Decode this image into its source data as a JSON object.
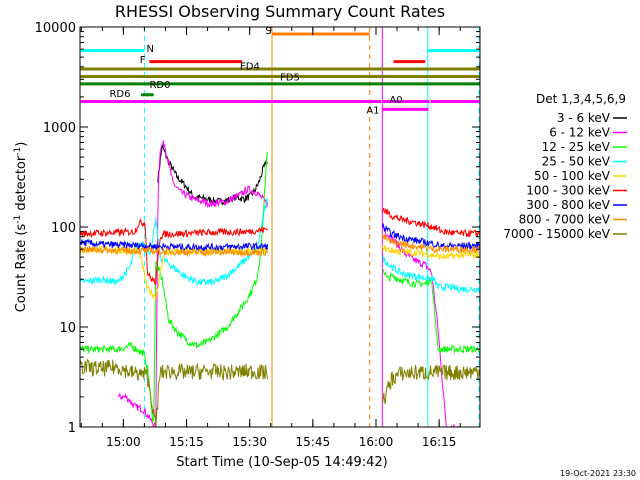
{
  "chart_data": {
    "type": "line",
    "title": "RHESSI Observing Summary Count Rates",
    "xlabel": "Start Time (10-Sep-05 14:49:42)",
    "ylabel": "Count Rate (s⁻¹ detector⁻¹)",
    "ylabel_main": "Count Rate (s",
    "ylabel_mid": " detector",
    "ylabel_end": ")",
    "ylabel_sup": "-1",
    "yscale": "log",
    "xlim_minutes": [
      0,
      95
    ],
    "ylim": [
      1,
      10000
    ],
    "x_ticks": [
      {
        "minute": 10.3,
        "label": "15:00"
      },
      {
        "minute": 25.3,
        "label": "15:15"
      },
      {
        "minute": 40.3,
        "label": "15:30"
      },
      {
        "minute": 55.3,
        "label": "15:45"
      },
      {
        "minute": 70.3,
        "label": "16:00"
      },
      {
        "minute": 85.3,
        "label": "16:15"
      }
    ],
    "y_ticks": [
      {
        "value": 1,
        "label": "1"
      },
      {
        "value": 10,
        "label": "10"
      },
      {
        "value": 100,
        "label": "100"
      },
      {
        "value": 1000,
        "label": "1000"
      },
      {
        "value": 10000,
        "label": "10000"
      }
    ],
    "legend_title": "Det 1,3,4,5,6,9",
    "legend_position": "right",
    "series": [
      {
        "name": "3 - 6 keV",
        "color": "#000000",
        "points": [
          [
            18.5,
            300
          ],
          [
            19.5,
            650
          ],
          [
            21,
            450
          ],
          [
            23,
            320
          ],
          [
            25,
            260
          ],
          [
            27,
            200
          ],
          [
            30,
            190
          ],
          [
            33,
            180
          ],
          [
            35,
            185
          ],
          [
            37,
            200
          ],
          [
            39,
            190
          ],
          [
            40.5,
            205
          ],
          [
            41.5,
            230
          ],
          [
            42.5,
            280
          ],
          [
            43.5,
            380
          ],
          [
            44.5,
            460
          ]
        ],
        "gaps": [
          [
            -1,
            18.2
          ],
          [
            44.6,
            96
          ]
        ]
      },
      {
        "name": "6 - 12 keV",
        "color": "#ff00ff",
        "points": [
          [
            9,
            2
          ],
          [
            11,
            2
          ],
          [
            13,
            1.6
          ],
          [
            15,
            1.5
          ],
          [
            18,
            1
          ],
          [
            18.5,
            190
          ],
          [
            19,
            600
          ],
          [
            20,
            700
          ],
          [
            21,
            450
          ],
          [
            22,
            280
          ],
          [
            24,
            220
          ],
          [
            27,
            190
          ],
          [
            31,
            170
          ],
          [
            35,
            180
          ],
          [
            38,
            210
          ],
          [
            40,
            240
          ],
          [
            42,
            220
          ],
          [
            44.5,
            170
          ],
          [
            72,
            100
          ],
          [
            73,
            85
          ],
          [
            75,
            70
          ],
          [
            77,
            55
          ],
          [
            80,
            45
          ],
          [
            82,
            42
          ],
          [
            83.5,
            35
          ],
          [
            85,
            10
          ],
          [
            86,
            3
          ],
          [
            87,
            1
          ],
          [
            90,
            1
          ]
        ],
        "gaps": [
          [
            44.6,
            71.8
          ]
        ]
      },
      {
        "name": "12 - 25 keV",
        "color": "#00ff00",
        "points": [
          [
            0,
            6
          ],
          [
            5,
            6
          ],
          [
            9,
            6
          ],
          [
            12,
            6.5
          ],
          [
            15,
            5.5
          ],
          [
            16,
            4
          ],
          [
            17.5,
            1
          ],
          [
            18,
            45
          ],
          [
            19.5,
            30
          ],
          [
            21,
            12
          ],
          [
            23,
            9
          ],
          [
            26,
            7
          ],
          [
            28,
            6.5
          ],
          [
            30,
            7
          ],
          [
            32,
            8
          ],
          [
            35,
            10
          ],
          [
            38,
            15
          ],
          [
            40,
            20
          ],
          [
            42,
            30
          ],
          [
            43,
            60
          ],
          [
            44.5,
            600
          ],
          [
            72,
            38
          ],
          [
            73,
            30
          ],
          [
            74,
            32
          ],
          [
            76,
            30
          ],
          [
            78,
            28
          ],
          [
            80,
            27
          ],
          [
            82,
            27
          ],
          [
            83.5,
            30
          ],
          [
            84,
            18
          ],
          [
            85,
            6
          ],
          [
            88,
            6
          ],
          [
            90,
            6
          ],
          [
            95,
            6
          ]
        ],
        "gaps": [
          [
            44.6,
            71.8
          ]
        ]
      },
      {
        "name": "25 - 50 keV",
        "color": "#00ffff",
        "points": [
          [
            0,
            28
          ],
          [
            5,
            30
          ],
          [
            9,
            28
          ],
          [
            12,
            40
          ],
          [
            13,
            60
          ],
          [
            14,
            65
          ],
          [
            15,
            70
          ],
          [
            16,
            55
          ],
          [
            17,
            60
          ],
          [
            18,
            120
          ],
          [
            19,
            50
          ],
          [
            22,
            40
          ],
          [
            25,
            32
          ],
          [
            28,
            28
          ],
          [
            32,
            28
          ],
          [
            35,
            33
          ],
          [
            38,
            42
          ],
          [
            40,
            50
          ],
          [
            42,
            60
          ],
          [
            43.5,
            120
          ],
          [
            44.5,
            200
          ],
          [
            72,
            48
          ],
          [
            74,
            40
          ],
          [
            76,
            35
          ],
          [
            78,
            33
          ],
          [
            80,
            32
          ],
          [
            82,
            31
          ],
          [
            84,
            30
          ],
          [
            85,
            25
          ],
          [
            88,
            25
          ],
          [
            90,
            24
          ],
          [
            95,
            24
          ]
        ],
        "gaps": [
          [
            44.6,
            71.8
          ]
        ]
      },
      {
        "name": "50 - 100 keV",
        "color": "#ffd700",
        "points": [
          [
            0,
            58
          ],
          [
            5,
            60
          ],
          [
            9,
            58
          ],
          [
            12,
            57
          ],
          [
            14,
            60
          ],
          [
            16,
            24
          ],
          [
            17,
            22
          ],
          [
            18,
            20
          ],
          [
            20,
            55
          ],
          [
            25,
            57
          ],
          [
            30,
            56
          ],
          [
            35,
            57
          ],
          [
            40,
            57
          ],
          [
            44.5,
            57
          ],
          [
            72,
            62
          ],
          [
            74,
            58
          ],
          [
            76,
            57
          ],
          [
            78,
            56
          ],
          [
            80,
            55
          ],
          [
            82,
            54
          ],
          [
            84,
            52
          ],
          [
            86,
            50
          ],
          [
            88,
            51
          ],
          [
            90,
            52
          ],
          [
            95,
            53
          ]
        ],
        "gaps": [
          [
            44.6,
            71.8
          ]
        ]
      },
      {
        "name": "100 - 300 keV",
        "color": "#ff0000",
        "points": [
          [
            0,
            86
          ],
          [
            5,
            87
          ],
          [
            10,
            88
          ],
          [
            13,
            90
          ],
          [
            14,
            110
          ],
          [
            15.5,
            110
          ],
          [
            16,
            35
          ],
          [
            17,
            30
          ],
          [
            18,
            28
          ],
          [
            19,
            80
          ],
          [
            20,
            85
          ],
          [
            25,
            86
          ],
          [
            30,
            88
          ],
          [
            35,
            89
          ],
          [
            40,
            90
          ],
          [
            44.5,
            95
          ],
          [
            72,
            150
          ],
          [
            74,
            130
          ],
          [
            76,
            120
          ],
          [
            78,
            115
          ],
          [
            80,
            110
          ],
          [
            82,
            105
          ],
          [
            84,
            100
          ],
          [
            86,
            90
          ],
          [
            88,
            88
          ],
          [
            90,
            86
          ],
          [
            95,
            86
          ]
        ],
        "gaps": [
          [
            44.6,
            71.8
          ]
        ]
      },
      {
        "name": "300 - 800 keV",
        "color": "#0000ff",
        "points": [
          [
            0,
            70
          ],
          [
            5,
            67
          ],
          [
            10,
            66
          ],
          [
            15,
            65
          ],
          [
            18,
            64
          ],
          [
            20,
            64
          ],
          [
            25,
            63
          ],
          [
            30,
            63
          ],
          [
            35,
            63
          ],
          [
            40,
            64
          ],
          [
            44.5,
            64
          ],
          [
            72,
            100
          ],
          [
            74,
            85
          ],
          [
            76,
            80
          ],
          [
            78,
            76
          ],
          [
            80,
            73
          ],
          [
            82,
            70
          ],
          [
            84,
            68
          ],
          [
            86,
            64
          ],
          [
            90,
            65
          ],
          [
            95,
            65
          ]
        ],
        "gaps": [
          [
            44.6,
            71.8
          ]
        ]
      },
      {
        "name": "800 - 7000 keV",
        "color": "#ff8c00",
        "points": [
          [
            0,
            60
          ],
          [
            5,
            59
          ],
          [
            10,
            58
          ],
          [
            15,
            58
          ],
          [
            20,
            57
          ],
          [
            25,
            56
          ],
          [
            30,
            56
          ],
          [
            35,
            56
          ],
          [
            40,
            56
          ],
          [
            44.5,
            56
          ],
          [
            72,
            80
          ],
          [
            74,
            70
          ],
          [
            76,
            68
          ],
          [
            78,
            66
          ],
          [
            80,
            64
          ],
          [
            82,
            62
          ],
          [
            84,
            60
          ],
          [
            86,
            60
          ],
          [
            90,
            60
          ],
          [
            95,
            60
          ]
        ],
        "gaps": [
          [
            44.6,
            71.8
          ]
        ]
      },
      {
        "name": "7000 - 15000 keV",
        "color": "#808000",
        "points": [
          [
            0,
            4
          ],
          [
            5,
            3.8
          ],
          [
            9,
            4
          ],
          [
            12,
            3.5
          ],
          [
            16,
            3.3
          ],
          [
            18,
            1
          ],
          [
            19,
            3.5
          ],
          [
            22,
            3.6
          ],
          [
            25,
            3.5
          ],
          [
            30,
            3.6
          ],
          [
            35,
            3.5
          ],
          [
            40,
            3.6
          ],
          [
            44.5,
            3.5
          ],
          [
            72,
            1.8
          ],
          [
            74,
            3
          ],
          [
            76,
            3.4
          ],
          [
            80,
            3.5
          ],
          [
            85,
            3.5
          ],
          [
            90,
            3.5
          ],
          [
            95,
            3.6
          ]
        ],
        "gaps": [
          [
            44.6,
            71.8
          ]
        ]
      }
    ],
    "flag_bars": [
      {
        "label": "N",
        "color": "#00ffff",
        "y": 5800,
        "segments": [
          [
            0,
            15.3
          ],
          [
            82.6,
            95
          ]
        ],
        "label_min": 15.8,
        "label_y": 6200
      },
      {
        "label": "S",
        "color": "#ff8000",
        "y": 8500,
        "segments": [
          [
            45.6,
            68.8
          ]
        ],
        "label_min": 44.0,
        "label_y": 9300
      },
      {
        "label": "F",
        "color": "#ff0000",
        "y": 4500,
        "segments": [
          [
            16.5,
            38.5
          ],
          [
            74.5,
            82.0
          ]
        ],
        "label_min": 14.2,
        "label_y": 4800
      },
      {
        "label": "FD4",
        "color": "#808000",
        "y": 3800,
        "segments": [
          [
            0,
            95
          ]
        ],
        "label_min": 38.0,
        "label_y": 4100
      },
      {
        "label": "FD5",
        "color": "#808000",
        "y": 3200,
        "segments": [
          [
            0,
            95
          ]
        ],
        "label_min": 47.5,
        "label_y": 3200
      },
      {
        "label": "RD0",
        "color": "#008000",
        "y": 2700,
        "segments": [
          [
            0,
            95
          ]
        ],
        "label_min": 16.5,
        "label_y": 2700
      },
      {
        "label": "RD6",
        "color": "#008000",
        "y": 2100,
        "segments": [
          [
            14.5,
            17.5
          ]
        ],
        "label_min": 7.0,
        "label_y": 2200
      },
      {
        "label": "A0",
        "color": "#ff00ff",
        "y": 1800,
        "segments": [
          [
            0,
            71.5
          ],
          [
            71.8,
            83.0
          ],
          [
            83.3,
            95
          ]
        ],
        "label_min": 73.5,
        "label_y": 1900
      },
      {
        "label": "A1",
        "color": "#ff00ff",
        "y": 1500,
        "segments": [
          [
            71.8,
            82.8
          ]
        ],
        "label_min": 68.0,
        "label_y": 1500
      }
    ],
    "vertical_markers": [
      {
        "minute": 15.3,
        "color": "#00ffff",
        "style": "dashed"
      },
      {
        "minute": 45.6,
        "color": "#ff8000",
        "style": "solid"
      },
      {
        "minute": 68.8,
        "color": "#ff8000",
        "style": "dashed"
      },
      {
        "minute": 71.8,
        "color": "#ff00ff",
        "style": "solid"
      },
      {
        "minute": 82.6,
        "color": "#00ffff",
        "style": "solid"
      },
      {
        "minute": 94.8,
        "color": "#00ffff",
        "style": "dashed"
      }
    ],
    "timestamp": "19-Oct-2021 23:30"
  }
}
